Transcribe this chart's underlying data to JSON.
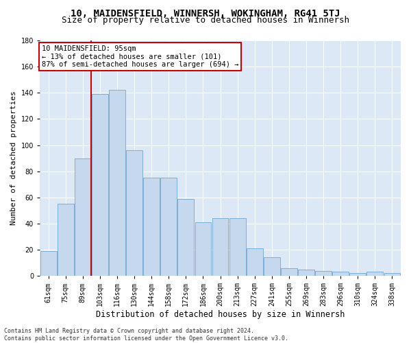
{
  "title": "10, MAIDENSFIELD, WINNERSH, WOKINGHAM, RG41 5TJ",
  "subtitle": "Size of property relative to detached houses in Winnersh",
  "xlabel": "Distribution of detached houses by size in Winnersh",
  "ylabel": "Number of detached properties",
  "categories": [
    "61sqm",
    "75sqm",
    "89sqm",
    "103sqm",
    "116sqm",
    "130sqm",
    "144sqm",
    "158sqm",
    "172sqm",
    "186sqm",
    "200sqm",
    "213sqm",
    "227sqm",
    "241sqm",
    "255sqm",
    "269sqm",
    "283sqm",
    "296sqm",
    "310sqm",
    "324sqm",
    "338sqm"
  ],
  "values": [
    19,
    55,
    90,
    139,
    142,
    96,
    75,
    75,
    59,
    41,
    44,
    44,
    21,
    14,
    6,
    5,
    4,
    3,
    2,
    3,
    2
  ],
  "bar_color": "#c5d8ee",
  "bar_edge_color": "#7bafd4",
  "vline_x_index": 2,
  "vline_color": "#cc0000",
  "annotation_text": "10 MAIDENSFIELD: 95sqm\n← 13% of detached houses are smaller (101)\n87% of semi-detached houses are larger (694) →",
  "annotation_box_color": "#ffffff",
  "annotation_box_edge_color": "#cc0000",
  "footer_text": "Contains HM Land Registry data © Crown copyright and database right 2024.\nContains public sector information licensed under the Open Government Licence v3.0.",
  "ylim": [
    0,
    180
  ],
  "yticks": [
    0,
    20,
    40,
    60,
    80,
    100,
    120,
    140,
    160,
    180
  ],
  "bg_color": "#dce8f5",
  "grid_color": "#ffffff",
  "title_fontsize": 10,
  "subtitle_fontsize": 9,
  "tick_fontsize": 7,
  "ylabel_fontsize": 8,
  "xlabel_fontsize": 8.5,
  "annotation_fontsize": 7.5,
  "footer_fontsize": 6
}
